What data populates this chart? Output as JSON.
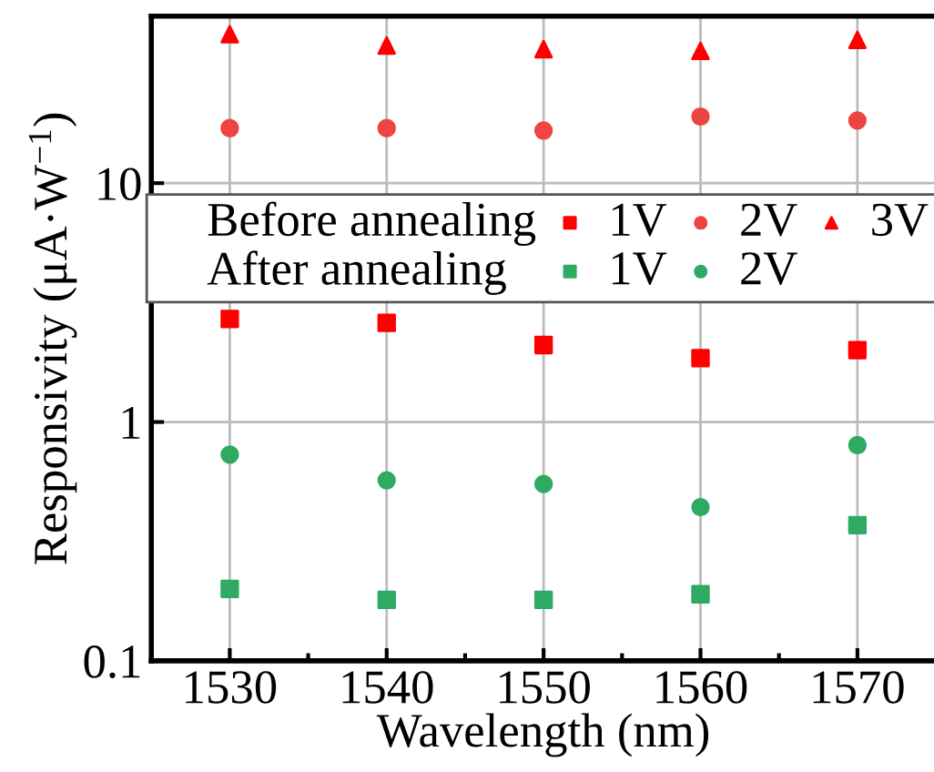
{
  "chart_data": {
    "type": "scatter",
    "xlabel": "Wavelength (nm)",
    "ylabel": "Responsivity (μA·W$^{−1}$)",
    "annotations": [
      "Before annealing",
      "After annealing"
    ],
    "x": [
      1530,
      1540,
      1550,
      1560,
      1570
    ],
    "series": [
      {
        "name": "1V",
        "color": "#ff0000",
        "marker": "square",
        "values": [
          2.7,
          2.6,
          2.1,
          1.85,
          2.0
        ]
      },
      {
        "name": "2V",
        "color": "#ef4444",
        "marker": "circle",
        "values": [
          17,
          17,
          16.6,
          19,
          18.3
        ]
      },
      {
        "name": "3V",
        "color": "#ff0000",
        "marker": "triangle",
        "values": [
          42,
          37.7,
          36.4,
          35.8,
          39.8
        ]
      },
      {
        "name": "1V",
        "color": "#2eaa63",
        "marker": "square",
        "values": [
          0.2,
          0.18,
          0.18,
          0.19,
          0.37
        ]
      },
      {
        "name": "2V",
        "color": "#2eaa63",
        "marker": "circle",
        "values": [
          0.73,
          0.57,
          0.55,
          0.44,
          0.8
        ]
      }
    ],
    "log": "y",
    "xlim": [
      1525,
      1575
    ],
    "ylim": [
      0.1,
      50
    ],
    "xticks": [
      1530,
      1540,
      1550,
      1560,
      1570
    ],
    "yticks": [
      0.1,
      1,
      10
    ],
    "grid": true,
    "legend": "right"
  }
}
